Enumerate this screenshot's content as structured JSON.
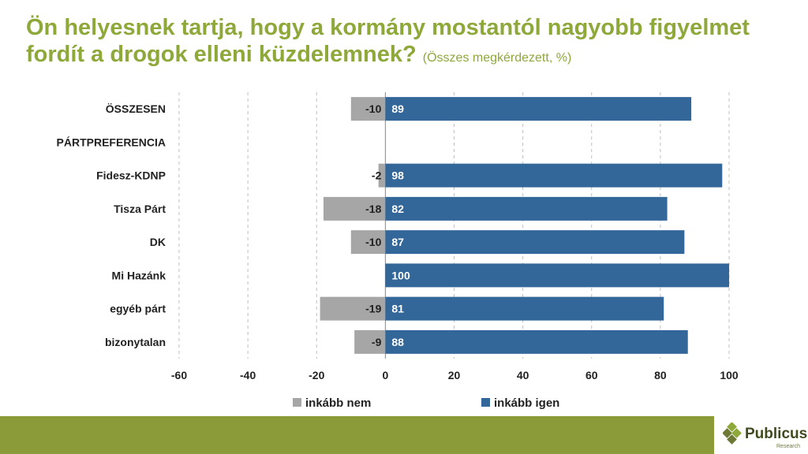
{
  "title": {
    "main": "Ön helyesnek tartja, hogy a kormány mostantól nagyobb figyelmet fordít a drogok elleni küzdelemnek?",
    "sub": "(Összes megkérdezett, %)"
  },
  "chart_data": {
    "type": "bar",
    "orientation": "horizontal",
    "stacked": "diverging",
    "categories": [
      "ÖSSZESEN",
      "PÁRTPREFERENCIA",
      "Fidesz-KDNP",
      "Tisza Párt",
      "DK",
      "Mi Hazánk",
      "egyéb párt",
      "bizonytalan"
    ],
    "series": [
      {
        "name": "inkább nem",
        "color": "#a6a6a6",
        "values": [
          -10,
          null,
          -2,
          -18,
          -10,
          null,
          -19,
          -9
        ]
      },
      {
        "name": "inkább igen",
        "color": "#336699",
        "values": [
          89,
          null,
          98,
          82,
          87,
          100,
          81,
          88
        ]
      }
    ],
    "xlim": [
      -60,
      100
    ],
    "xticks": [
      -60,
      -40,
      -20,
      0,
      20,
      40,
      60,
      80,
      100
    ],
    "grid": "vertical-dashed",
    "legend": "bottom",
    "xlabel": "",
    "ylabel": ""
  },
  "logo": {
    "name": "Publicus",
    "tagline": "Research"
  },
  "colors": {
    "title": "#8ea83a",
    "footer": "#8b9b3a",
    "yes": "#336699",
    "no": "#a6a6a6"
  }
}
